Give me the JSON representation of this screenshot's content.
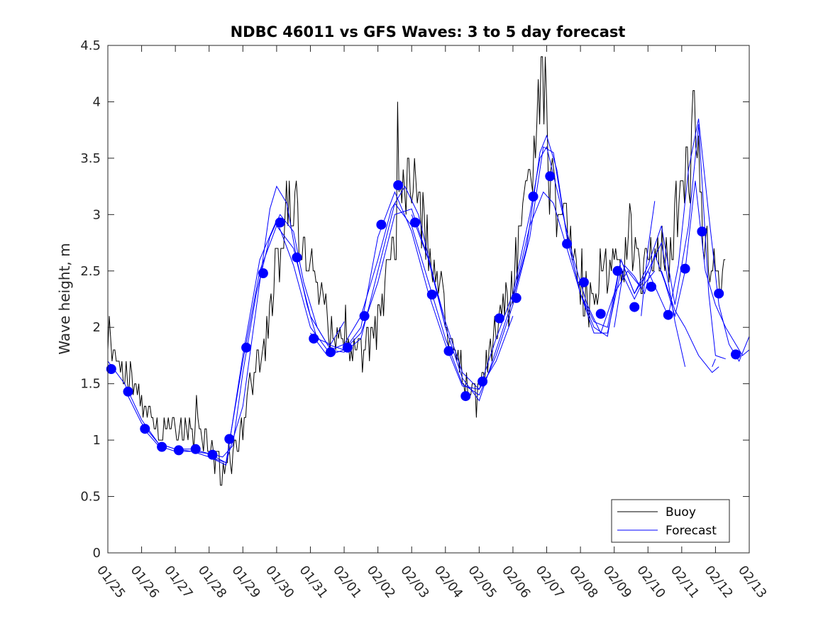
{
  "chart_data": {
    "type": "line",
    "title": "NDBC 46011 vs GFS Waves: 3 to 5 day forecast",
    "xlabel": "",
    "ylabel": "Wave height, m",
    "x_range_days": [
      0,
      19
    ],
    "ylim": [
      0,
      4.5
    ],
    "y_ticks": [
      "0",
      "0.5",
      "1",
      "1.5",
      "2",
      "2.5",
      "3",
      "3.5",
      "4",
      "4.5"
    ],
    "x_ticks": [
      "01/25",
      "01/26",
      "01/27",
      "01/28",
      "01/29",
      "01/30",
      "01/31",
      "02/01",
      "02/02",
      "02/03",
      "02/04",
      "02/05",
      "02/06",
      "02/07",
      "02/08",
      "02/09",
      "02/10",
      "02/11",
      "02/12",
      "02/13"
    ],
    "grid": false,
    "legend": {
      "position": "bottom-right",
      "entries": [
        "Buoy",
        "Forecast"
      ]
    },
    "colors": {
      "buoy": "#000000",
      "forecast": "#0000ff",
      "axes": "#262626"
    },
    "buoy_anchors": {
      "x": [
        0,
        0.3,
        0.5,
        0.8,
        1.0,
        1.3,
        1.6,
        2.0,
        2.4,
        2.8,
        3.0,
        3.3,
        3.5,
        3.8,
        4.0,
        4.3,
        4.6,
        4.9,
        5.0,
        5.2,
        5.5,
        5.8,
        6.0,
        6.3,
        6.6,
        7.0,
        7.3,
        7.6,
        7.9,
        8.2,
        8.5,
        8.7,
        8.9,
        9.1,
        9.3,
        9.6,
        9.9,
        10.1,
        10.3,
        10.6,
        10.9,
        11.1,
        11.3,
        11.6,
        11.9,
        12.1,
        12.4,
        12.7,
        12.9,
        13.1,
        13.3,
        13.6,
        13.9,
        14.1,
        14.3,
        14.6,
        14.9,
        15.1,
        15.4,
        15.7,
        16.0,
        16.3,
        16.6,
        16.9,
        17.1,
        17.3,
        17.5,
        17.7,
        17.9,
        18.1,
        18.3
      ],
      "y": [
        1.85,
        1.65,
        1.6,
        1.5,
        1.3,
        1.12,
        1.08,
        1.1,
        1.08,
        1.06,
        0.92,
        0.78,
        0.75,
        0.9,
        1.15,
        1.55,
        1.8,
        2.3,
        2.55,
        2.9,
        3.05,
        2.7,
        2.65,
        2.3,
        1.95,
        1.85,
        1.82,
        1.8,
        1.95,
        2.3,
        2.8,
        3.15,
        3.1,
        3.2,
        2.95,
        2.55,
        2.3,
        1.95,
        1.7,
        1.55,
        1.4,
        1.5,
        1.8,
        2.1,
        2.2,
        2.6,
        3.05,
        3.55,
        3.7,
        3.3,
        3.05,
        2.85,
        2.45,
        2.3,
        2.25,
        2.5,
        2.6,
        2.55,
        2.6,
        2.55,
        2.5,
        2.7,
        2.6,
        3.0,
        3.35,
        3.45,
        3.1,
        2.75,
        2.55,
        2.5,
        2.5
      ],
      "spikes": [
        {
          "x": 12.85,
          "y": 4.4
        },
        {
          "x": 12.95,
          "y": 4.4
        },
        {
          "x": 12.75,
          "y": 4.2
        },
        {
          "x": 8.6,
          "y": 4.0
        },
        {
          "x": 17.35,
          "y": 4.1
        },
        {
          "x": 17.5,
          "y": 3.7
        },
        {
          "x": 5.3,
          "y": 3.3
        },
        {
          "x": 5.6,
          "y": 3.3
        },
        {
          "x": 8.9,
          "y": 3.5
        },
        {
          "x": 9.1,
          "y": 3.5
        },
        {
          "x": 0.05,
          "y": 2.1
        },
        {
          "x": 17.0,
          "y": 3.3
        }
      ]
    },
    "forecast_dots": {
      "x": [
        0.1,
        0.6,
        1.1,
        1.6,
        2.1,
        2.6,
        3.1,
        3.6,
        4.1,
        4.6,
        5.1,
        5.6,
        6.1,
        6.6,
        7.1,
        7.6,
        8.1,
        8.6,
        9.1,
        9.6,
        10.1,
        10.6,
        11.1,
        11.6,
        12.1,
        12.6,
        13.1,
        13.6,
        14.1,
        14.6,
        15.1,
        15.6,
        16.1,
        16.6,
        17.1,
        17.6,
        18.1,
        18.6
      ],
      "y": [
        1.63,
        1.43,
        1.1,
        0.94,
        0.91,
        0.92,
        0.87,
        1.01,
        1.82,
        2.48,
        2.93,
        2.62,
        1.9,
        1.78,
        1.82,
        2.1,
        2.91,
        3.26,
        2.93,
        2.29,
        1.79,
        1.39,
        1.52,
        2.08,
        2.26,
        3.16,
        3.34,
        2.74,
        2.4,
        2.12,
        2.5,
        2.18,
        2.36,
        2.11,
        2.52,
        2.85,
        2.3,
        1.76
      ]
    },
    "forecast_runs": [
      {
        "name": "run-a",
        "x": [
          0,
          0.5,
          1.0,
          1.5,
          2.0,
          2.5,
          3.0,
          3.5,
          4.0,
          4.5,
          4.8,
          5.0,
          5.3,
          5.6,
          5.9,
          6.2,
          6.6,
          7.0
        ],
        "y": [
          1.7,
          1.5,
          1.18,
          0.97,
          0.92,
          0.92,
          0.88,
          0.8,
          1.3,
          2.4,
          3.05,
          3.25,
          3.1,
          2.6,
          2.2,
          1.9,
          1.85,
          2.05
        ]
      },
      {
        "name": "run-b",
        "x": [
          0.5,
          1.0,
          1.5,
          2.0,
          2.5,
          3.0,
          3.4,
          3.7,
          4.0,
          4.4,
          4.8,
          5.1,
          5.5,
          5.8,
          6.2,
          6.6,
          7.0,
          7.5,
          8.0,
          8.4,
          8.8,
          9.2,
          9.6,
          10.0
        ],
        "y": [
          1.45,
          1.15,
          0.97,
          0.92,
          0.9,
          0.88,
          0.85,
          0.95,
          1.6,
          2.3,
          2.8,
          3.0,
          2.85,
          2.4,
          2.0,
          1.8,
          1.85,
          2.1,
          2.6,
          3.05,
          3.25,
          3.0,
          2.5,
          2.0
        ]
      },
      {
        "name": "run-c",
        "x": [
          1.0,
          1.5,
          2.0,
          2.5,
          3.0,
          3.5,
          4.0,
          4.5,
          5.0,
          5.5,
          6.0,
          6.5,
          7.0,
          7.5,
          8.0,
          8.5,
          9.0,
          9.5,
          10.0,
          10.5,
          11.0,
          11.5,
          12.0
        ],
        "y": [
          1.12,
          0.95,
          0.9,
          0.9,
          0.85,
          0.8,
          1.7,
          2.5,
          2.9,
          2.7,
          2.1,
          1.85,
          1.8,
          1.95,
          2.4,
          3.0,
          3.05,
          2.6,
          2.05,
          1.6,
          1.45,
          1.7,
          2.1
        ]
      },
      {
        "name": "run-d",
        "x": [
          3.0,
          3.5,
          4.0,
          4.5,
          5.0,
          5.5,
          6.0,
          6.5,
          7.0,
          7.5,
          8.0,
          8.5,
          9.0,
          9.5,
          10.0,
          10.5,
          11.0,
          11.5,
          12.0,
          12.5,
          12.9,
          13.2,
          13.6,
          14.0
        ],
        "y": [
          0.85,
          0.78,
          1.75,
          2.6,
          2.95,
          2.55,
          2.0,
          1.8,
          1.78,
          1.9,
          2.5,
          3.1,
          2.9,
          2.4,
          1.9,
          1.5,
          1.4,
          1.75,
          2.2,
          2.8,
          3.6,
          3.55,
          2.8,
          2.3
        ]
      },
      {
        "name": "run-e",
        "x": [
          6.0,
          6.5,
          7.0,
          7.5,
          8.0,
          8.5,
          9.0,
          9.5,
          10.0,
          10.5,
          11.0,
          11.5,
          12.0,
          12.5,
          12.8,
          13.0,
          13.4,
          13.8,
          14.2,
          14.6,
          15.0,
          15.4,
          15.8,
          16.2
        ],
        "y": [
          1.95,
          1.75,
          1.8,
          2.0,
          2.8,
          3.2,
          2.85,
          2.3,
          1.85,
          1.48,
          1.45,
          1.9,
          2.3,
          3.0,
          3.5,
          3.6,
          3.1,
          2.6,
          2.2,
          1.95,
          2.3,
          2.5,
          2.35,
          2.5
        ]
      },
      {
        "name": "run-f",
        "x": [
          9.0,
          9.5,
          10.0,
          10.5,
          11.0,
          11.5,
          12.0,
          12.5,
          12.9,
          13.2,
          13.6,
          14.0,
          14.4,
          14.8,
          15.2,
          15.6,
          16.0,
          16.4,
          16.8,
          17.1
        ],
        "y": [
          3.0,
          2.6,
          2.0,
          1.55,
          1.35,
          1.8,
          2.25,
          2.9,
          3.2,
          3.1,
          2.7,
          2.3,
          2.05,
          2.0,
          2.6,
          2.3,
          2.5,
          2.75,
          2.05,
          1.65
        ]
      },
      {
        "name": "run-g",
        "x": [
          12.0,
          12.4,
          12.8,
          13.0,
          13.3,
          13.6,
          14.0,
          14.4,
          14.8,
          15.2,
          15.6,
          16.0,
          16.3,
          16.6,
          16.9,
          17.2,
          17.5,
          17.8,
          18.1,
          18.4,
          18.7,
          19.0
        ],
        "y": [
          2.25,
          2.7,
          3.55,
          3.7,
          3.4,
          2.8,
          2.3,
          1.95,
          1.95,
          2.5,
          2.25,
          2.5,
          2.3,
          2.1,
          2.55,
          3.4,
          3.85,
          3.0,
          2.2,
          1.85,
          1.7,
          1.92
        ]
      },
      {
        "name": "run-h",
        "x": [
          14.0,
          14.4,
          14.8,
          15.2,
          15.6,
          16.0,
          16.4,
          16.8,
          17.2,
          17.5,
          17.8,
          18.0,
          18.3
        ],
        "y": [
          2.3,
          2.0,
          1.92,
          2.6,
          2.3,
          2.55,
          2.9,
          2.2,
          2.9,
          3.8,
          2.3,
          1.75,
          1.72
        ]
      },
      {
        "name": "run-i",
        "x": [
          15.0,
          15.3,
          15.6,
          15.9,
          16.2,
          16.5,
          16.8,
          17.1,
          17.4,
          17.7,
          18.0,
          18.3,
          18.6,
          18.8,
          19.0
        ],
        "y": [
          2.0,
          2.55,
          2.45,
          2.3,
          2.65,
          2.4,
          2.1,
          2.5,
          3.3,
          2.5,
          2.2,
          2.0,
          1.85,
          1.75,
          1.8
        ]
      },
      {
        "name": "run-j",
        "x": [
          15.8,
          16.0,
          16.2
        ],
        "y": [
          2.1,
          2.7,
          3.12
        ]
      },
      {
        "name": "run-k",
        "x": [
          16.4,
          16.8,
          17.1,
          17.5,
          17.9,
          18.1
        ],
        "y": [
          2.5,
          2.15,
          2.0,
          1.75,
          1.6,
          1.65
        ]
      },
      {
        "name": "run-l",
        "x": [
          17.9,
          18.0
        ],
        "y": [
          1.65,
          1.72
        ]
      }
    ]
  }
}
